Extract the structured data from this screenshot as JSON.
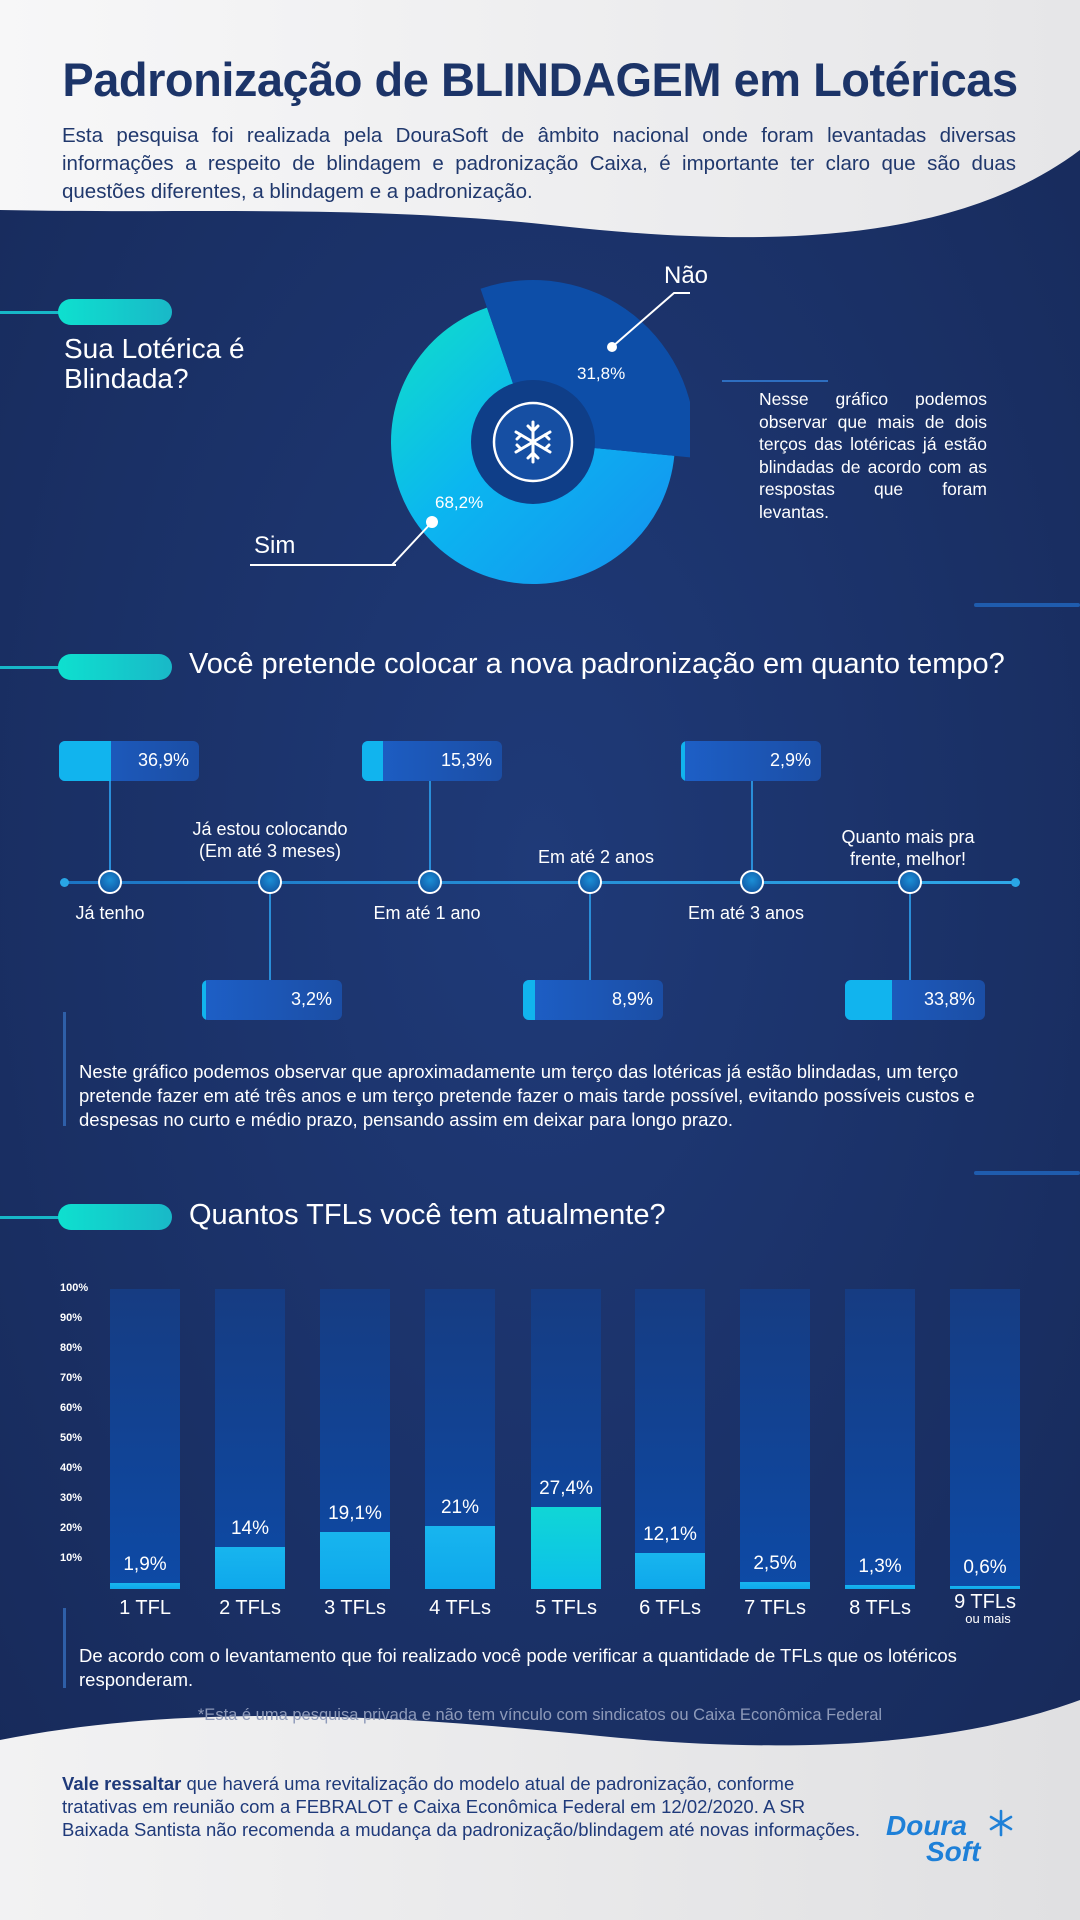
{
  "header": {
    "title": "Padronização de BLINDAGEM em Lotéricas",
    "intro": "Esta pesquisa foi realizada pela DouraSoft de âmbito nacional onde foram levantadas diversas informações a respeito de blindagem e padronização  Caixa, é importante ter claro que são duas questões diferentes, a blindagem e a padronização."
  },
  "section1": {
    "question": "Sua Lotérica é Blindada?",
    "note": "Nesse gráfico podemos observar que mais de dois terços das lotéricas já estão blindadas de acordo com as respostas que foram levantas.",
    "label_nao": "Não",
    "label_sim": "Sim",
    "pct_nao": "31,8%",
    "pct_sim": "68,2%"
  },
  "section2": {
    "question": "Você pretende colocar a nova padronização em quanto tempo?",
    "note": "Neste gráfico podemos observar que aproximadamente um terço das lotéricas já estão blindadas, um terço pretende fazer em até três anos e um terço pretende fazer o mais tarde possível, evitando possíveis custos e despesas no curto e médio prazo, pensando assim em deixar para longo prazo."
  },
  "section3": {
    "question": "Quantos TFLs você tem atualmente?",
    "note": "De acordo com o levantamento que foi realizado você pode verificar a quantidade de TFLs que os lotéricos responderam.",
    "extra_label": "ou mais"
  },
  "disclaimer": "*Esta é uma pesquisa privada e não tem vínculo com sindicatos ou Caixa Econômica Federal",
  "footer": {
    "bold": "Vale ressaltar",
    "text": " que haverá uma revitalização do modelo atual de padronização, conforme tratativas em reunião com a FEBRALOT e Caixa Econômica Federal  em 12/02/2020. A SR Baixada Santista não recomenda a mudança da padronização/blindagem até novas informações.",
    "logo_line1": "Doura",
    "logo_line2": "Soft"
  },
  "colors": {
    "navy": "#1b2f63",
    "title": "#1c3468",
    "cyan": "#11b4ee",
    "teal": "#0ee0cf",
    "pie_nao": "#0d4ea8",
    "pie_sim": "#0aa8f5"
  },
  "icons": [
    "snowflake-icon"
  ],
  "chart_data": [
    {
      "type": "pie",
      "categories": [
        "Sim",
        "Não"
      ],
      "values": [
        68.2,
        31.8
      ],
      "labels": [
        "68,2%",
        "31,8%"
      ]
    },
    {
      "type": "bar",
      "categories": [
        "Já tenho",
        "Já estou colocando (Em até 3 meses)",
        "Em até 1 ano",
        "Em até 2 anos",
        "Em até 3 anos",
        "Quanto mais pra frente, melhor!"
      ],
      "values": [
        36.9,
        3.2,
        15.3,
        8.9,
        2.9,
        33.8
      ],
      "labels": [
        "36,9%",
        "3,2%",
        "15,3%",
        "8,9%",
        "2,9%",
        "33,8%"
      ]
    },
    {
      "type": "bar",
      "categories": [
        "1 TFL",
        "2 TFLs",
        "3 TFLs",
        "4 TFLs",
        "5 TFLs",
        "6 TFLs",
        "7 TFLs",
        "8 TFLs",
        "9 TFLs"
      ],
      "values": [
        1.9,
        14,
        19.1,
        21,
        27.4,
        12.1,
        2.5,
        1.3,
        0.6
      ],
      "labels": [
        "1,9%",
        "14%",
        "19,1%",
        "21%",
        "27,4%",
        "12,1%",
        "2,5%",
        "1,3%",
        "0,6%"
      ],
      "ylim": [
        0,
        100
      ],
      "yticks": [
        "100%",
        "90%",
        "80%",
        "70%",
        "60%",
        "50%",
        "40%",
        "30%",
        "20%",
        "10%"
      ]
    }
  ]
}
